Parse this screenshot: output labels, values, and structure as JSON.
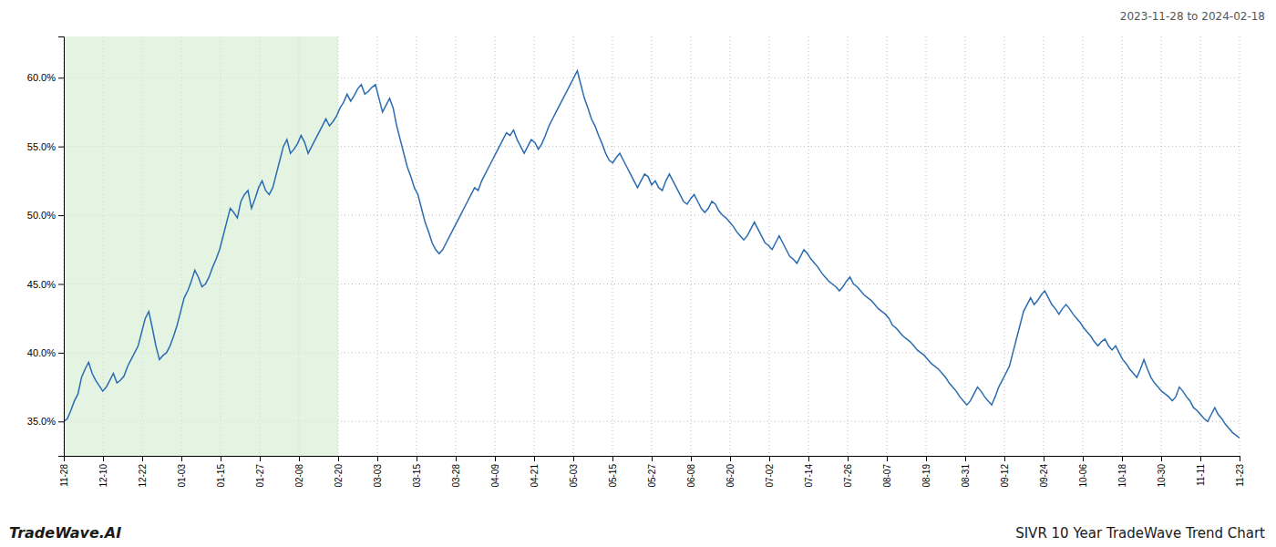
{
  "chart_data": {
    "type": "line",
    "title": "SIVR 10 Year TradeWave Trend Chart",
    "subtitle": "2023-11-28 to 2024-02-18",
    "annotations": [
      "TradeWave.AI"
    ],
    "color": "#2b6cb0",
    "grid": true,
    "band": {
      "x": [
        0,
        77.46666666666667
      ],
      "color": "#d6ecd2"
    },
    "xlim": [
      0,
      332
    ],
    "xticks": [
      {
        "value": 0,
        "label": "11-28"
      },
      {
        "value": 11.066666666666666,
        "label": "12-10"
      },
      {
        "value": 22.133333333333333,
        "label": "12-22"
      },
      {
        "value": 33.2,
        "label": "01-03"
      },
      {
        "value": 44.266666666666666,
        "label": "01-15"
      },
      {
        "value": 55.333333333333336,
        "label": "01-27"
      },
      {
        "value": 66.4,
        "label": "02-08"
      },
      {
        "value": 77.46666666666667,
        "label": "02-20"
      },
      {
        "value": 88.53333333333333,
        "label": "03-03"
      },
      {
        "value": 99.6,
        "label": "03-15"
      },
      {
        "value": 110.66666666666667,
        "label": "03-28"
      },
      {
        "value": 121.73333333333333,
        "label": "04-09"
      },
      {
        "value": 132.8,
        "label": "04-21"
      },
      {
        "value": 143.86666666666667,
        "label": "05-03"
      },
      {
        "value": 154.93333333333334,
        "label": "05-15"
      },
      {
        "value": 166,
        "label": "05-27"
      },
      {
        "value": 177.06666666666666,
        "label": "06-08"
      },
      {
        "value": 188.13333333333333,
        "label": "06-20"
      },
      {
        "value": 199.2,
        "label": "07-02"
      },
      {
        "value": 210.26666666666668,
        "label": "07-14"
      },
      {
        "value": 221.33333333333334,
        "label": "07-26"
      },
      {
        "value": 232.4,
        "label": "08-07"
      },
      {
        "value": 243.46666666666667,
        "label": "08-19"
      },
      {
        "value": 254.53333333333333,
        "label": "08-31"
      },
      {
        "value": 265.6,
        "label": "09-12"
      },
      {
        "value": 276.6666666666667,
        "label": "09-24"
      },
      {
        "value": 287.73333333333335,
        "label": "10-06"
      },
      {
        "value": 298.8,
        "label": "10-18"
      },
      {
        "value": 309.8666666666667,
        "label": "10-30"
      },
      {
        "value": 320.93333333333334,
        "label": "11-11"
      },
      {
        "value": 332,
        "label": "11-23"
      }
    ],
    "ylim": [
      32.5,
      63.0
    ],
    "yticks": [
      {
        "value": 35.0,
        "label": "35.0%"
      },
      {
        "value": 40.0,
        "label": "40.0%"
      },
      {
        "value": 45.0,
        "label": "45.0%"
      },
      {
        "value": 50.0,
        "label": "50.0%"
      },
      {
        "value": 55.0,
        "label": "55.0%"
      },
      {
        "value": 60.0,
        "label": "60.0%"
      }
    ],
    "values": [
      35.0,
      35.2,
      35.8,
      36.5,
      37.0,
      38.2,
      38.8,
      39.3,
      38.5,
      38.0,
      37.6,
      37.2,
      37.5,
      38.0,
      38.5,
      37.8,
      38.0,
      38.3,
      39.0,
      39.5,
      40.0,
      40.5,
      41.5,
      42.5,
      43.0,
      41.8,
      40.5,
      39.5,
      39.8,
      40.0,
      40.5,
      41.2,
      42.0,
      43.0,
      44.0,
      44.5,
      45.2,
      46.0,
      45.5,
      44.8,
      45.0,
      45.5,
      46.2,
      46.8,
      47.5,
      48.5,
      49.5,
      50.5,
      50.2,
      49.8,
      51.0,
      51.5,
      51.8,
      50.5,
      51.2,
      52.0,
      52.5,
      51.8,
      51.5,
      52.0,
      53.0,
      54.0,
      55.0,
      55.5,
      54.5,
      54.8,
      55.2,
      55.8,
      55.3,
      54.5,
      55.0,
      55.5,
      56.0,
      56.5,
      57.0,
      56.5,
      56.8,
      57.2,
      57.8,
      58.2,
      58.8,
      58.3,
      58.7,
      59.2,
      59.5,
      58.8,
      59.0,
      59.3,
      59.5,
      58.5,
      57.5,
      58.0,
      58.5,
      57.8,
      56.5,
      55.5,
      54.5,
      53.5,
      52.8,
      52.0,
      51.5,
      50.5,
      49.5,
      48.8,
      48.0,
      47.5,
      47.2,
      47.5,
      48.0,
      48.5,
      49.0,
      49.5,
      50.0,
      50.5,
      51.0,
      51.5,
      52.0,
      51.8,
      52.5,
      53.0,
      53.5,
      54.0,
      54.5,
      55.0,
      55.5,
      56.0,
      55.8,
      56.2,
      55.5,
      55.0,
      54.5,
      55.0,
      55.5,
      55.3,
      54.8,
      55.2,
      55.8,
      56.5,
      57.0,
      57.5,
      58.0,
      58.5,
      59.0,
      59.5,
      60.0,
      60.5,
      59.5,
      58.5,
      57.8,
      57.0,
      56.5,
      55.8,
      55.2,
      54.5,
      54.0,
      53.8,
      54.2,
      54.5,
      54.0,
      53.5,
      53.0,
      52.5,
      52.0,
      52.5,
      53.0,
      52.8,
      52.2,
      52.5,
      52.0,
      51.8,
      52.5,
      53.0,
      52.5,
      52.0,
      51.5,
      51.0,
      50.8,
      51.2,
      51.5,
      51.0,
      50.5,
      50.2,
      50.5,
      51.0,
      50.8,
      50.3,
      50.0,
      49.8,
      49.5,
      49.2,
      48.8,
      48.5,
      48.2,
      48.5,
      49.0,
      49.5,
      49.0,
      48.5,
      48.0,
      47.8,
      47.5,
      48.0,
      48.5,
      48.0,
      47.5,
      47.0,
      46.8,
      46.5,
      47.0,
      47.5,
      47.2,
      46.8,
      46.5,
      46.2,
      45.8,
      45.5,
      45.2,
      45.0,
      44.8,
      44.5,
      44.8,
      45.2,
      45.5,
      45.0,
      44.8,
      44.5,
      44.2,
      44.0,
      43.8,
      43.5,
      43.2,
      43.0,
      42.8,
      42.5,
      42.0,
      41.8,
      41.5,
      41.2,
      41.0,
      40.8,
      40.5,
      40.2,
      40.0,
      39.8,
      39.5,
      39.2,
      39.0,
      38.8,
      38.5,
      38.2,
      37.8,
      37.5,
      37.2,
      36.8,
      36.5,
      36.2,
      36.5,
      37.0,
      37.5,
      37.2,
      36.8,
      36.5,
      36.2,
      36.8,
      37.5,
      38.0,
      38.5,
      39.0,
      40.0,
      41.0,
      42.0,
      43.0,
      43.5,
      44.0,
      43.5,
      43.8,
      44.2,
      44.5,
      44.0,
      43.5,
      43.2,
      42.8,
      43.2,
      43.5,
      43.2,
      42.8,
      42.5,
      42.2,
      41.8,
      41.5,
      41.2,
      40.8,
      40.5,
      40.8,
      41.0,
      40.5,
      40.2,
      40.5,
      40.0,
      39.5,
      39.2,
      38.8,
      38.5,
      38.2,
      38.8,
      39.5,
      38.8,
      38.2,
      37.8,
      37.5,
      37.2,
      37.0,
      36.8,
      36.5,
      36.8,
      37.5,
      37.2,
      36.8,
      36.5,
      36.0,
      35.8,
      35.5,
      35.2,
      35.0,
      35.5,
      36.0,
      35.5,
      35.2,
      34.8,
      34.5,
      34.2,
      34.0,
      33.8
    ]
  }
}
